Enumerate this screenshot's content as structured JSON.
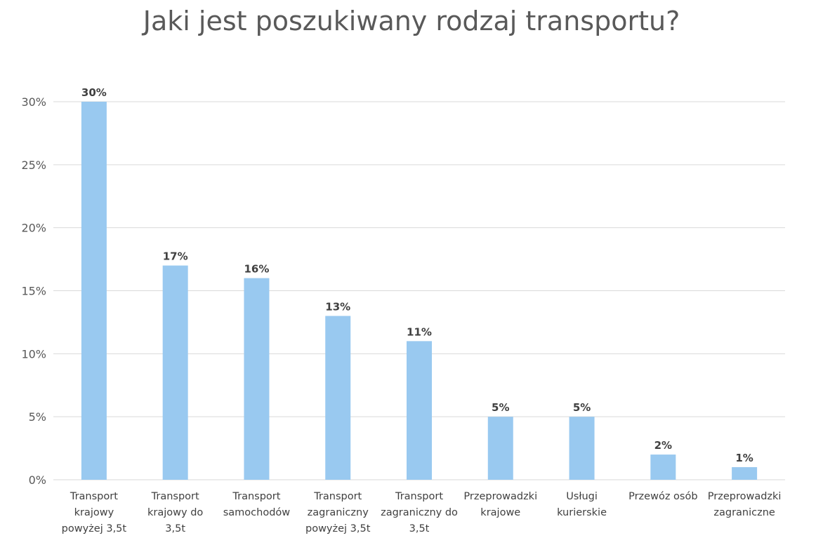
{
  "chart_data": {
    "type": "bar",
    "title": "Jaki jest poszukiwany rodzaj transportu?",
    "xlabel": "",
    "ylabel": "",
    "ylim": [
      0,
      30
    ],
    "yticks": [
      "0%",
      "5%",
      "10%",
      "15%",
      "20%",
      "25%",
      "30%"
    ],
    "ytick_values": [
      0,
      5,
      10,
      15,
      20,
      25,
      30
    ],
    "grid": true,
    "bar_color": "#99c9f0",
    "categories": [
      [
        "Transport",
        "krajowy",
        "powyżej 3,5t"
      ],
      [
        "Transport",
        "krajowy do",
        "3,5t"
      ],
      [
        "Transport",
        "samochodów"
      ],
      [
        "Transport",
        "zagraniczny",
        "powyżej 3,5t"
      ],
      [
        "Transport",
        "zagraniczny do",
        "3,5t"
      ],
      [
        "Przeprowadzki",
        "krajowe"
      ],
      [
        "Usługi",
        "kurierskie"
      ],
      [
        "Przewóz osób"
      ],
      [
        "Przeprowadzki",
        "zagraniczne"
      ]
    ],
    "values": [
      30,
      17,
      16,
      13,
      11,
      5,
      5,
      2,
      1
    ],
    "data_labels": [
      "30%",
      "17%",
      "16%",
      "13%",
      "11%",
      "5%",
      "5%",
      "2%",
      "1%"
    ]
  }
}
